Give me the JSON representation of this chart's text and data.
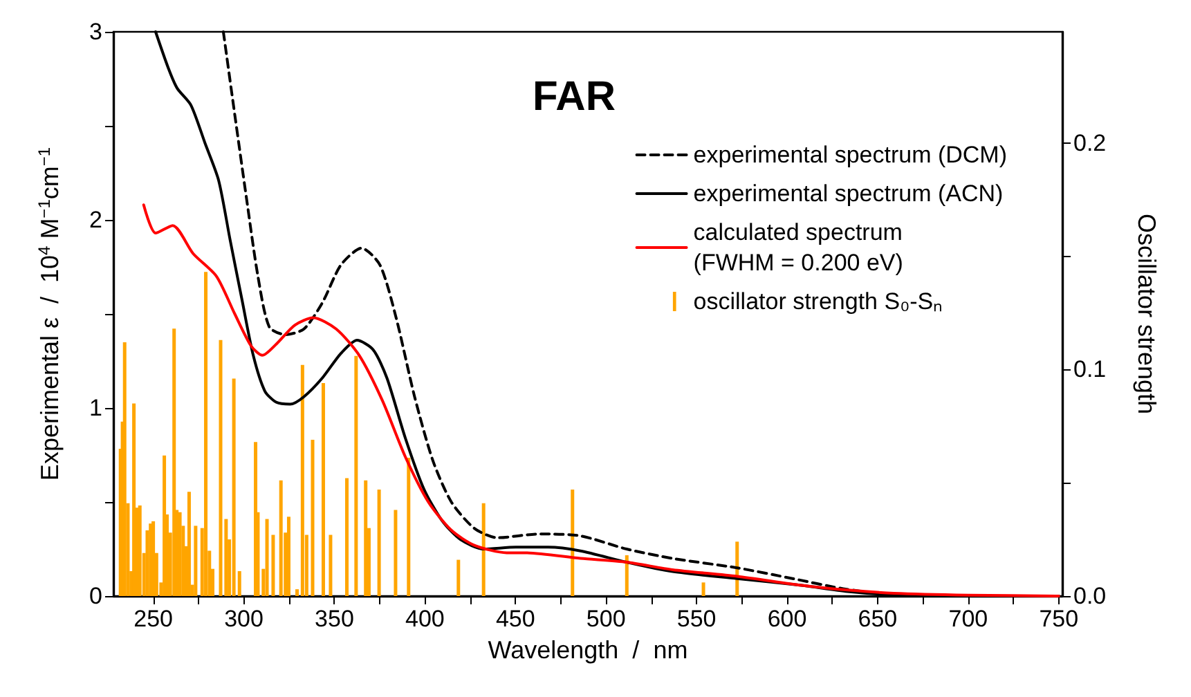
{
  "chart_data": {
    "type": "line",
    "title": "FAR",
    "xlabel": "Wavelength  /  nm",
    "ylabel": "Experimental ε  /  10$^{4}$ M$^{−1}$cm$^{−1}$",
    "y2label": "Oscillator strength",
    "xlim": [
      228,
      752
    ],
    "xticks": [
      250,
      {
        "value": 275,
        "label": null
      },
      300,
      {
        "value": 325,
        "label": null
      },
      350,
      {
        "value": 375,
        "label": null
      },
      400,
      {
        "value": 425,
        "label": null
      },
      450,
      {
        "value": 475,
        "label": null
      },
      500,
      {
        "value": 525,
        "label": null
      },
      550,
      {
        "value": 575,
        "label": null
      },
      600,
      {
        "value": 625,
        "label": null
      },
      650,
      {
        "value": 675,
        "label": null
      },
      700,
      {
        "value": 725,
        "label": null
      },
      750
    ],
    "ylim": [
      0,
      3
    ],
    "yticks": [
      0,
      {
        "value": 0.5,
        "label": null
      },
      1,
      {
        "value": 1.5,
        "label": null
      },
      2,
      {
        "value": 2.5,
        "label": null
      },
      3
    ],
    "y2lim": [
      0,
      0.249
    ],
    "y2ticks": [
      {
        "value": 0,
        "label": "0.0"
      },
      {
        "value": 0.05,
        "label": null
      },
      {
        "value": 0.1,
        "label": "0.1"
      },
      {
        "value": 0.15,
        "label": null
      },
      {
        "value": 0.2,
        "label": "0.2"
      }
    ],
    "legend": "top right",
    "grid": false,
    "marker": "none",
    "series": [
      {
        "name": "experimental spectrum (DCM)",
        "line_style": "dashed",
        "color": "#000000",
        "x": [
          288.7,
          295,
          301.4,
          307.8,
          314.1,
          323,
          333.2,
          343.4,
          353.6,
          365,
          375.2,
          384.1,
          394.3,
          404.4,
          414.6,
          427.3,
          440,
          463,
          485.9,
          511.4,
          536.8,
          572.4,
          603,
          631,
          659,
          700,
          750
        ],
        "values": [
          3.0,
          2.56,
          2.12,
          1.7,
          1.43,
          1.39,
          1.42,
          1.56,
          1.76,
          1.85,
          1.76,
          1.48,
          1.06,
          0.72,
          0.5,
          0.36,
          0.31,
          0.33,
          0.32,
          0.25,
          0.2,
          0.15,
          0.093,
          0.039,
          0.007,
          0,
          0
        ]
      },
      {
        "name": "experimental spectrum (ACN)",
        "line_style": "solid",
        "color": "#000000",
        "x": [
          251.3,
          258.2,
          263.2,
          270.8,
          278.5,
          286.1,
          292.5,
          298.9,
          305.2,
          311.6,
          318,
          325.6,
          333.2,
          343.4,
          353.6,
          362.5,
          371.4,
          379,
          389.2,
          399.4,
          409.5,
          419.7,
          432.4,
          450.2,
          468,
          485.9,
          511.4,
          536.8,
          572.4,
          608,
          633.4,
          658.9,
          700,
          750
        ],
        "values": [
          3.0,
          2.81,
          2.7,
          2.61,
          2.41,
          2.21,
          1.89,
          1.58,
          1.28,
          1.09,
          1.03,
          1.02,
          1.06,
          1.16,
          1.29,
          1.36,
          1.31,
          1.16,
          0.84,
          0.57,
          0.4,
          0.3,
          0.25,
          0.26,
          0.26,
          0.24,
          0.18,
          0.13,
          0.093,
          0.057,
          0.024,
          0.007,
          0,
          0
        ]
      },
      {
        "name": "calculated spectrum\n(FWHM = 0.200 eV)",
        "line_style": "solid",
        "color": "#ff0000",
        "x": [
          244.7,
          251.3,
          260.7,
          272.1,
          284.9,
          295,
          304,
          310.3,
          318,
          328.1,
          338.3,
          351,
          363.7,
          376.5,
          389.2,
          401.9,
          414.6,
          427.3,
          445.2,
          455.3,
          485.9,
          511.4,
          536.8,
          572.4,
          608,
          633.4,
          659,
          700,
          750
        ],
        "values": [
          2.08,
          1.93,
          1.97,
          1.82,
          1.7,
          1.5,
          1.33,
          1.28,
          1.34,
          1.44,
          1.48,
          1.42,
          1.28,
          1.04,
          0.74,
          0.5,
          0.35,
          0.27,
          0.23,
          0.23,
          0.2,
          0.18,
          0.14,
          0.105,
          0.057,
          0.032,
          0.015,
          0.005,
          0
        ]
      },
      {
        "name": "oscillator strength S₀-Sₙ",
        "type": "bar",
        "axis": "y2",
        "color": "#ffa500",
        "x": [
          231.9,
          233,
          234.2,
          236,
          237.8,
          239.3,
          241,
          242.6,
          244.9,
          246.7,
          248.5,
          250,
          251.8,
          254.3,
          256.1,
          257.6,
          259.4,
          261.5,
          263,
          264.7,
          266.5,
          268.3,
          269.8,
          271.6,
          273.4,
          277,
          279,
          281,
          282.8,
          287.2,
          290.2,
          292,
          294.5,
          297.6,
          306.5,
          307.8,
          310.8,
          312.8,
          316.2,
          320.5,
          323,
          324.8,
          329.4,
          332.4,
          334.7,
          338,
          343.9,
          347.9,
          356.9,
          362,
          367.3,
          369.1,
          374.7,
          383.8,
          391,
          418.5,
          432.4,
          481.5,
          511.5,
          553.8,
          572.4
        ],
        "values": [
          0.065,
          0.077,
          0.112,
          0.041,
          0.011,
          0.085,
          0.039,
          0.04,
          0.019,
          0.029,
          0.032,
          0.033,
          0.019,
          0.006,
          0.062,
          0.036,
          0.028,
          0.118,
          0.038,
          0.037,
          0.031,
          0.022,
          0.046,
          0.005,
          0.031,
          0.03,
          0.143,
          0.02,
          0.012,
          0.113,
          0.034,
          0.025,
          0.096,
          0.011,
          0.068,
          0.037,
          0.012,
          0.034,
          0.027,
          0.051,
          0.028,
          0.035,
          0.003,
          0.102,
          0.027,
          0.069,
          0.094,
          0.027,
          0.052,
          0.106,
          0.051,
          0.03,
          0.047,
          0.038,
          0.061,
          0.016,
          0.041,
          0.047,
          0.018,
          0.006,
          0.024
        ]
      }
    ]
  }
}
